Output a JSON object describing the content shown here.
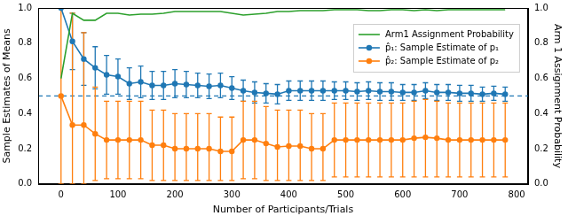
{
  "chart_data": {
    "type": "line",
    "xlabel": "Number of Participants/Trials",
    "ylabel": "Sample Estimates of Means",
    "y2label": "Arm 1 Assignment Probability",
    "x": [
      0,
      20,
      40,
      60,
      80,
      100,
      120,
      140,
      160,
      180,
      200,
      220,
      240,
      260,
      280,
      300,
      320,
      340,
      360,
      380,
      400,
      420,
      440,
      460,
      480,
      500,
      520,
      540,
      560,
      580,
      600,
      620,
      640,
      660,
      680,
      700,
      720,
      740,
      760,
      780
    ],
    "xlim": [
      -40,
      820
    ],
    "xticks": [
      0,
      100,
      200,
      300,
      400,
      500,
      600,
      700,
      800
    ],
    "ylim": [
      0,
      1
    ],
    "yticks": [
      {
        "value": 0,
        "label": "0.0"
      },
      {
        "value": 0.2,
        "label": "0.2"
      },
      {
        "value": 0.4,
        "label": "0.4"
      },
      {
        "value": 0.6,
        "label": "0.6"
      },
      {
        "value": 0.8,
        "label": "0.8"
      },
      {
        "value": 1,
        "label": "1.0"
      }
    ],
    "y2lim": [
      0,
      1
    ],
    "y2ticks": [
      {
        "value": 0,
        "label": "0.0"
      },
      {
        "value": 0.2,
        "label": "0.2"
      },
      {
        "value": 0.4,
        "label": "0.4"
      },
      {
        "value": 0.6,
        "label": "0.6"
      },
      {
        "value": 0.8,
        "label": "0.8"
      },
      {
        "value": 1,
        "label": "1.0"
      }
    ],
    "grid": false,
    "legend": "upper right",
    "hlines": [
      {
        "y": 0.5,
        "color": "#1f77b4",
        "line_style": "dashed"
      }
    ],
    "series": [
      {
        "name": "Arm1 Assignment Probability",
        "color": "#2ca02c",
        "axis": "y2",
        "marker": "none",
        "line_style": "solid",
        "values": [
          0.6,
          0.97,
          0.93,
          0.93,
          0.97,
          0.97,
          0.96,
          0.965,
          0.965,
          0.97,
          0.98,
          0.98,
          0.98,
          0.98,
          0.98,
          0.97,
          0.96,
          0.965,
          0.97,
          0.98,
          0.98,
          0.985,
          0.985,
          0.985,
          0.99,
          0.99,
          0.99,
          0.985,
          0.985,
          0.99,
          0.99,
          0.985,
          0.99,
          0.985,
          0.99,
          0.99,
          0.99,
          0.99,
          0.99,
          0.99
        ]
      },
      {
        "name": "p̂₁: Sample Estimate of p₁",
        "color": "#1f77b4",
        "axis": "y",
        "marker": "circle",
        "line_style": "solid",
        "values": [
          1.0,
          0.81,
          0.71,
          0.66,
          0.62,
          0.61,
          0.57,
          0.58,
          0.56,
          0.56,
          0.57,
          0.565,
          0.56,
          0.555,
          0.56,
          0.545,
          0.53,
          0.52,
          0.515,
          0.51,
          0.53,
          0.53,
          0.53,
          0.53,
          0.53,
          0.53,
          0.525,
          0.53,
          0.525,
          0.525,
          0.52,
          0.52,
          0.53,
          0.52,
          0.52,
          0.515,
          0.515,
          0.51,
          0.515,
          0.51
        ],
        "err_low": [
          1.0,
          0.65,
          0.56,
          0.54,
          0.51,
          0.51,
          0.48,
          0.49,
          0.48,
          0.48,
          0.49,
          0.49,
          0.49,
          0.485,
          0.49,
          0.48,
          0.47,
          0.46,
          0.46,
          0.455,
          0.475,
          0.475,
          0.475,
          0.475,
          0.48,
          0.48,
          0.475,
          0.48,
          0.475,
          0.475,
          0.475,
          0.475,
          0.485,
          0.475,
          0.475,
          0.47,
          0.47,
          0.47,
          0.475,
          0.47
        ],
        "err_high": [
          1.0,
          0.97,
          0.86,
          0.78,
          0.73,
          0.71,
          0.66,
          0.67,
          0.64,
          0.64,
          0.65,
          0.64,
          0.63,
          0.625,
          0.63,
          0.61,
          0.59,
          0.58,
          0.57,
          0.565,
          0.585,
          0.585,
          0.585,
          0.585,
          0.58,
          0.58,
          0.575,
          0.58,
          0.575,
          0.575,
          0.565,
          0.565,
          0.575,
          0.565,
          0.565,
          0.56,
          0.56,
          0.55,
          0.555,
          0.55
        ]
      },
      {
        "name": "p̂₂: Sample Estimate of p₂",
        "color": "#ff7f0e",
        "axis": "y",
        "marker": "circle",
        "line_style": "solid",
        "values": [
          0.5,
          0.335,
          0.335,
          0.285,
          0.25,
          0.25,
          0.25,
          0.25,
          0.22,
          0.22,
          0.2,
          0.2,
          0.2,
          0.2,
          0.185,
          0.185,
          0.25,
          0.25,
          0.23,
          0.21,
          0.215,
          0.215,
          0.2,
          0.2,
          0.25,
          0.25,
          0.25,
          0.25,
          0.25,
          0.25,
          0.25,
          0.26,
          0.265,
          0.26,
          0.25,
          0.25,
          0.25,
          0.25,
          0.25,
          0.25
        ],
        "err_low": [
          0.0,
          0.0,
          0.0,
          0.02,
          0.03,
          0.03,
          0.03,
          0.03,
          0.02,
          0.02,
          0.02,
          0.02,
          0.02,
          0.02,
          0.02,
          0.02,
          0.03,
          0.03,
          0.02,
          0.02,
          0.02,
          0.02,
          0.02,
          0.02,
          0.04,
          0.04,
          0.04,
          0.04,
          0.04,
          0.04,
          0.04,
          0.04,
          0.04,
          0.04,
          0.04,
          0.04,
          0.04,
          0.04,
          0.04,
          0.04
        ],
        "err_high": [
          1.0,
          0.97,
          0.86,
          0.55,
          0.47,
          0.47,
          0.47,
          0.47,
          0.42,
          0.42,
          0.4,
          0.4,
          0.4,
          0.4,
          0.38,
          0.38,
          0.47,
          0.47,
          0.44,
          0.42,
          0.42,
          0.42,
          0.4,
          0.4,
          0.46,
          0.46,
          0.46,
          0.46,
          0.46,
          0.46,
          0.46,
          0.47,
          0.48,
          0.47,
          0.46,
          0.46,
          0.46,
          0.46,
          0.46,
          0.46
        ]
      }
    ]
  }
}
